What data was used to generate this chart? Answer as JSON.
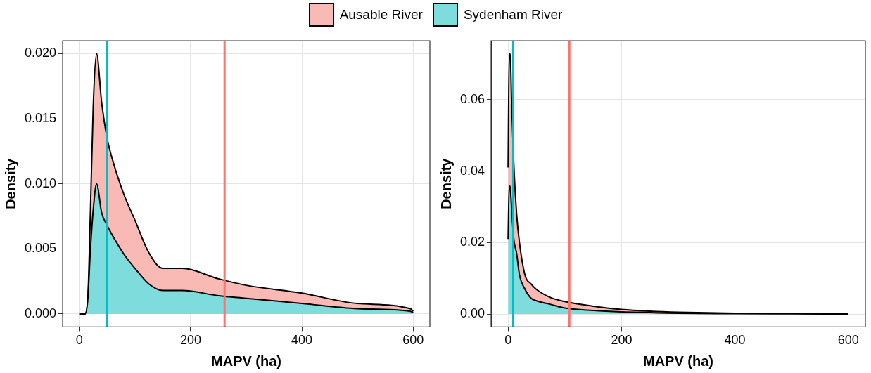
{
  "chart_data": [
    {
      "type": "area",
      "stacked": true,
      "xlabel": "MAPV (ha)",
      "ylabel": "Density",
      "legend": "top",
      "grid": true,
      "xlim": [
        -30,
        630
      ],
      "ylim": [
        -0.001,
        0.021
      ],
      "xticks": [
        0,
        200,
        400,
        600
      ],
      "yticks": [
        {
          "value": 0,
          "label": "0.000"
        },
        {
          "value": 0.005,
          "label": "0.005"
        },
        {
          "value": 0.01,
          "label": "0.010"
        },
        {
          "value": 0.015,
          "label": "0.015"
        },
        {
          "value": 0.02,
          "label": "0.020"
        }
      ],
      "x": [
        0,
        10,
        15,
        20,
        25,
        31,
        40,
        50,
        60,
        80,
        100,
        125,
        150,
        185,
        250,
        300,
        400,
        500,
        595,
        600
      ],
      "series": [
        {
          "name": "Sydenham River",
          "color": "#7fdcdd",
          "values": [
            0,
            0,
            0.001,
            0.005,
            0.008,
            0.01,
            0.0078,
            0.0068,
            0.006,
            0.0046,
            0.0035,
            0.0023,
            0.0018,
            0.0018,
            0.0014,
            0.0012,
            0.0008,
            0.0004,
            0.0002,
            0.0001
          ]
        },
        {
          "name": "Ausable River",
          "color": "#f9b9b4",
          "values": [
            0,
            0,
            0,
            0.003,
            0.008,
            0.01,
            0.0085,
            0.0067,
            0.0058,
            0.0046,
            0.0037,
            0.0024,
            0.0017,
            0.0017,
            0.0013,
            0.001,
            0.0008,
            0.0004,
            0.0002,
            0.0001
          ]
        }
      ],
      "ref_lines": [
        {
          "axis": "x",
          "value": 49,
          "color": "#00bfc4"
        },
        {
          "axis": "x",
          "value": 261,
          "color": "#f8766d"
        }
      ]
    },
    {
      "type": "area",
      "stacked": true,
      "xlabel": "MAPV (ha)",
      "ylabel": "Density",
      "legend": "top",
      "grid": true,
      "xlim": [
        -30,
        630
      ],
      "ylim": [
        -0.0036,
        0.0765
      ],
      "xticks": [
        0,
        200,
        400,
        600
      ],
      "yticks": [
        {
          "value": 0,
          "label": "0.00"
        },
        {
          "value": 0.02,
          "label": "0.02"
        },
        {
          "value": 0.04,
          "label": "0.04"
        },
        {
          "value": 0.06,
          "label": "0.06"
        }
      ],
      "x": [
        0,
        2,
        4,
        6,
        10,
        15,
        20,
        30,
        40,
        50,
        75,
        100,
        150,
        200,
        250,
        300,
        400,
        500,
        600
      ],
      "series": [
        {
          "name": "Sydenham River",
          "color": "#7fdcdd",
          "values": [
            0.021,
            0.036,
            0.035,
            0.03,
            0.021,
            0.017,
            0.011,
            0.0069,
            0.0045,
            0.0037,
            0.0027,
            0.0017,
            0.001,
            0.0006,
            0.0004,
            0.0002,
            0.0001,
            0.0001,
            0
          ]
        },
        {
          "name": "Ausable River",
          "color": "#f9b9b4",
          "values": [
            0.02,
            0.037,
            0.037,
            0.03,
            0.021,
            0.011,
            0.009,
            0.0039,
            0.004,
            0.0032,
            0.0019,
            0.0018,
            0.0012,
            0.0007,
            0.0004,
            0.0003,
            0.0001,
            0,
            0
          ]
        }
      ],
      "ref_lines": [
        {
          "axis": "x",
          "value": 9,
          "color": "#00bfc4"
        },
        {
          "axis": "x",
          "value": 108,
          "color": "#f8766d"
        }
      ]
    }
  ]
}
